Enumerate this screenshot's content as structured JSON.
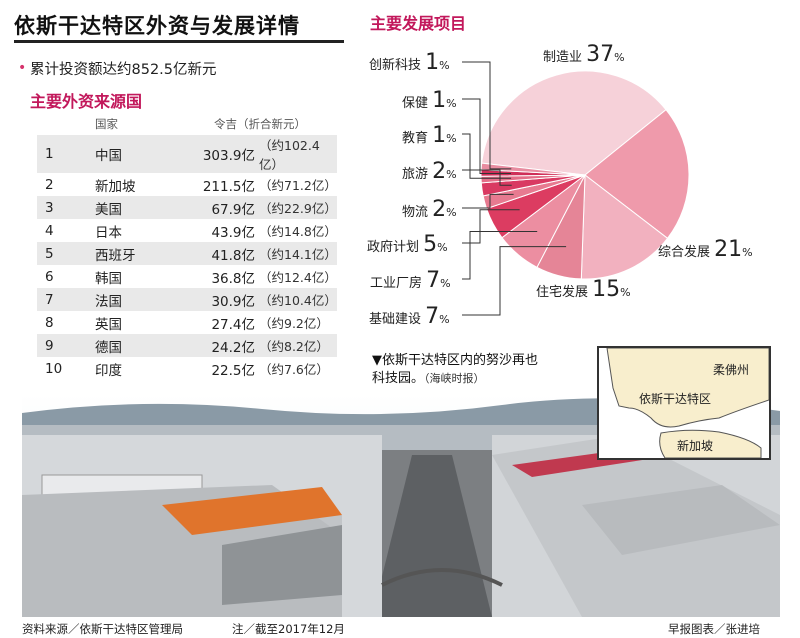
{
  "title": "依斯干达特区外资与发展详情",
  "total_investment": "累计投资额达约852.5亿新元",
  "sources_heading": "主要外资来源国",
  "table_headers": {
    "country": "国家",
    "amount": "令吉（折合新元）"
  },
  "rows": [
    {
      "rank": "1",
      "country": "中国",
      "myr": "303.9亿",
      "sgd": "（约102.4亿）"
    },
    {
      "rank": "2",
      "country": "新加坡",
      "myr": "211.5亿",
      "sgd": "（约71.2亿）"
    },
    {
      "rank": "3",
      "country": "美国",
      "myr": "67.9亿",
      "sgd": "（约22.9亿）"
    },
    {
      "rank": "4",
      "country": "日本",
      "myr": "43.9亿",
      "sgd": "（约14.8亿）"
    },
    {
      "rank": "5",
      "country": "西班牙",
      "myr": "41.8亿",
      "sgd": "（约14.1亿）"
    },
    {
      "rank": "6",
      "country": "韩国",
      "myr": "36.8亿",
      "sgd": "（约12.4亿）"
    },
    {
      "rank": "7",
      "country": "法国",
      "myr": "30.9亿",
      "sgd": "（约10.4亿）"
    },
    {
      "rank": "8",
      "country": "英国",
      "myr": "27.4亿",
      "sgd": "（约9.2亿）"
    },
    {
      "rank": "9",
      "country": "德国",
      "myr": "24.2亿",
      "sgd": "（约8.2亿）"
    },
    {
      "rank": "10",
      "country": "印度",
      "myr": "22.5亿",
      "sgd": "（约7.6亿）"
    }
  ],
  "projects_heading": "主要发展项目",
  "chart_data": {
    "type": "pie",
    "title": "主要发展项目",
    "categories": [
      "制造业",
      "综合发展",
      "住宅发展",
      "基础建设",
      "工业厂房",
      "政府计划",
      "物流",
      "旅游",
      "教育",
      "保健",
      "创新科技"
    ],
    "values": [
      37,
      21,
      15,
      7,
      7,
      5,
      2,
      2,
      1,
      1,
      1
    ],
    "unit": "%",
    "colors": [
      "#f6d1d9",
      "#ef9aab",
      "#f2b1bf",
      "#e58597",
      "#ec8ea1",
      "#dc3c61",
      "#e77a90",
      "#d93a62",
      "#e36e88",
      "#cf2e58",
      "#e88ca0"
    ]
  },
  "caption": {
    "main": "▼依斯干达特区内的努沙再也",
    "line2": "科技园。",
    "credit": "（海峡时报）"
  },
  "map": {
    "label_johor": "柔佛州",
    "label_iskandar": "依斯干达特区",
    "label_singapore": "新加坡"
  },
  "footer": {
    "source": "资料来源／依斯干达特区管理局",
    "note": "注／截至2017年12月",
    "credit": "早报图表／张进培"
  }
}
